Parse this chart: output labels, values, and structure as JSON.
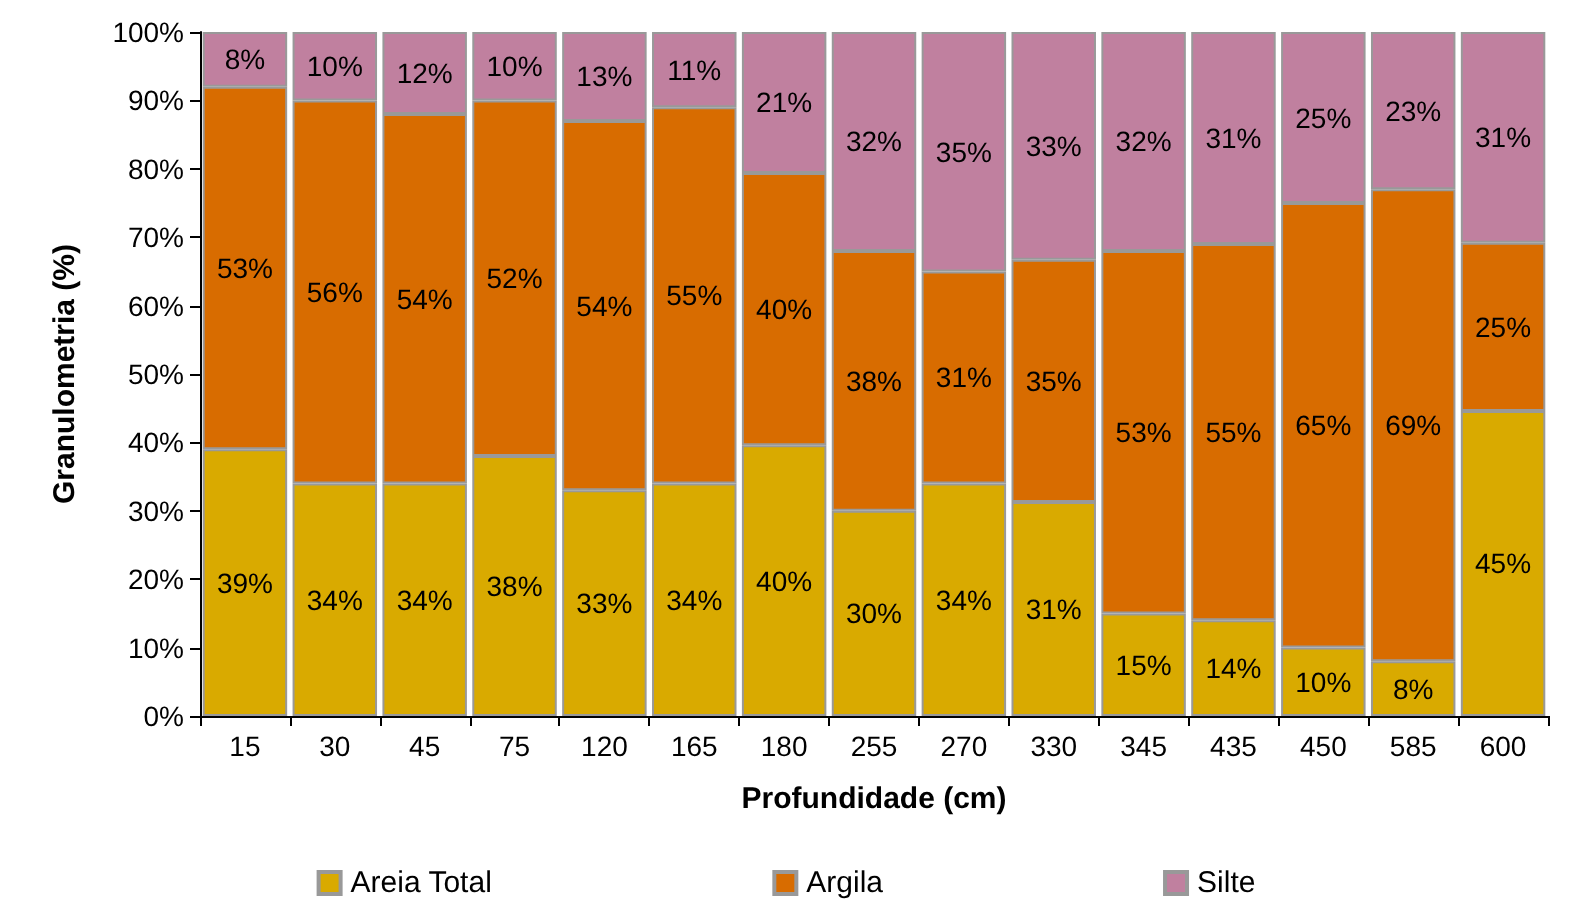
{
  "chart_data": {
    "type": "bar",
    "stacked": true,
    "xlabel": "Profundidade (cm)",
    "ylabel": "Granulometria (%)",
    "categories": [
      "15",
      "30",
      "45",
      "75",
      "120",
      "165",
      "180",
      "255",
      "270",
      "330",
      "345",
      "435",
      "450",
      "585",
      "600"
    ],
    "series": [
      {
        "name": "Areia Total",
        "color": "#d9aa00",
        "values": [
          39,
          34,
          34,
          38,
          33,
          34,
          39.6,
          30,
          34,
          31.3,
          15,
          14,
          10,
          8,
          44.6
        ],
        "value_labels": [
          "39%",
          "34%",
          "34%",
          "38%",
          "33%",
          "34%",
          "40%",
          "30%",
          "34%",
          "31%",
          "15%",
          "14%",
          "10%",
          "8%",
          "45%"
        ]
      },
      {
        "name": "Argila",
        "color": "#d86c00",
        "values": [
          53,
          56,
          54,
          52,
          54,
          55,
          39.8,
          38,
          31,
          35.4,
          53,
          55,
          65,
          69,
          24.6
        ],
        "value_labels": [
          "53%",
          "56%",
          "54%",
          "52%",
          "54%",
          "55%",
          "40%",
          "38%",
          "31%",
          "35%",
          "53%",
          "55%",
          "65%",
          "69%",
          "25%"
        ]
      },
      {
        "name": "Silte",
        "color": "#c0809f",
        "values": [
          8,
          10,
          12,
          10,
          13,
          11,
          20.6,
          32,
          35,
          33.3,
          32,
          31,
          25,
          23,
          30.8
        ],
        "value_labels": [
          "8%",
          "10%",
          "12%",
          "10%",
          "13%",
          "11%",
          "21%",
          "32%",
          "35%",
          "33%",
          "32%",
          "31%",
          "25%",
          "23%",
          "31%"
        ]
      }
    ],
    "ylim": [
      0,
      100
    ],
    "yticks": [
      {
        "value": 0,
        "label": "0%"
      },
      {
        "value": 10,
        "label": "10%"
      },
      {
        "value": 20,
        "label": "20%"
      },
      {
        "value": 30,
        "label": "30%"
      },
      {
        "value": 40,
        "label": "40%"
      },
      {
        "value": 50,
        "label": "50%"
      },
      {
        "value": 60,
        "label": "60%"
      },
      {
        "value": 70,
        "label": "70%"
      },
      {
        "value": 80,
        "label": "80%"
      },
      {
        "value": 90,
        "label": "90%"
      },
      {
        "value": 100,
        "label": "100%"
      }
    ],
    "grid": false,
    "legend": "bottom"
  }
}
